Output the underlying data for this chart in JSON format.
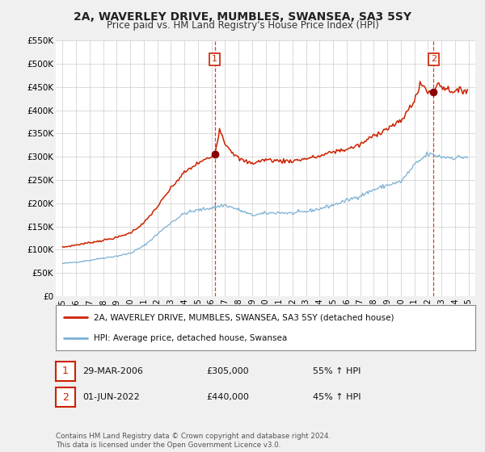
{
  "title": "2A, WAVERLEY DRIVE, MUMBLES, SWANSEA, SA3 5SY",
  "subtitle": "Price paid vs. HM Land Registry's House Price Index (HPI)",
  "legend_line1": "2A, WAVERLEY DRIVE, MUMBLES, SWANSEA, SA3 5SY (detached house)",
  "legend_line2": "HPI: Average price, detached house, Swansea",
  "footnote": "Contains HM Land Registry data © Crown copyright and database right 2024.\nThis data is licensed under the Open Government Licence v3.0.",
  "sale1_label": "1",
  "sale1_date": "29-MAR-2006",
  "sale1_price": "£305,000",
  "sale1_pct": "55% ↑ HPI",
  "sale1_x": 2006.25,
  "sale1_y": 305000,
  "sale2_label": "2",
  "sale2_date": "01-JUN-2022",
  "sale2_price": "£440,000",
  "sale2_pct": "45% ↑ HPI",
  "sale2_x": 2022.42,
  "sale2_y": 440000,
  "hpi_color": "#7ab0d4",
  "price_color": "#cc2200",
  "marker_color": "#8b0000",
  "annotation_color": "#cc2200",
  "dashed_color": "#cc2200",
  "bg_color": "#f0f0f0",
  "plot_bg": "#ffffff",
  "grid_color": "#cccccc",
  "legend_border": "#888888",
  "ylim": [
    0,
    550000
  ],
  "yticks": [
    0,
    50000,
    100000,
    150000,
    200000,
    250000,
    300000,
    350000,
    400000,
    450000,
    500000,
    550000
  ],
  "ytick_labels": [
    "£0",
    "£50K",
    "£100K",
    "£150K",
    "£200K",
    "£250K",
    "£300K",
    "£350K",
    "£400K",
    "£450K",
    "£500K",
    "£550K"
  ],
  "xlim": [
    1994.5,
    2025.5
  ],
  "xtick_years": [
    1995,
    1996,
    1997,
    1998,
    1999,
    2000,
    2001,
    2002,
    2003,
    2004,
    2005,
    2006,
    2007,
    2008,
    2009,
    2010,
    2011,
    2012,
    2013,
    2014,
    2015,
    2016,
    2017,
    2018,
    2019,
    2020,
    2021,
    2022,
    2023,
    2024,
    2025
  ],
  "hpi_anchors_x": [
    1995,
    1996,
    1997,
    1998,
    1999,
    2000,
    2001,
    2002,
    2003,
    2004,
    2005,
    2006,
    2007,
    2008,
    2009,
    2010,
    2011,
    2012,
    2013,
    2014,
    2015,
    2016,
    2017,
    2018,
    2019,
    2020,
    2021,
    2022,
    2023,
    2024,
    2025
  ],
  "hpi_anchors_y": [
    70000,
    73000,
    77000,
    82000,
    86000,
    92000,
    108000,
    133000,
    158000,
    178000,
    185000,
    190000,
    196000,
    186000,
    174000,
    178000,
    180000,
    178000,
    182000,
    188000,
    196000,
    206000,
    216000,
    229000,
    239000,
    246000,
    282000,
    306000,
    300000,
    298000,
    300000
  ],
  "price_anchors_x": [
    1995,
    1996,
    1997,
    1998,
    1999,
    2000,
    2001,
    2002,
    2003,
    2004,
    2005,
    2006.0,
    2006.25,
    2006.6,
    2007.0,
    2007.5,
    2008.0,
    2008.5,
    2009.0,
    2010.0,
    2011.0,
    2012.0,
    2013.0,
    2014.0,
    2015.0,
    2016.0,
    2017.0,
    2018.0,
    2019.0,
    2020.0,
    2021.0,
    2021.5,
    2022.0,
    2022.42,
    2022.8,
    2023.0,
    2024.0,
    2025.0
  ],
  "price_anchors_y": [
    105000,
    110000,
    115000,
    120000,
    126000,
    136000,
    157000,
    192000,
    232000,
    266000,
    286000,
    300000,
    305000,
    360000,
    330000,
    312000,
    296000,
    290000,
    286000,
    294000,
    291000,
    291000,
    296000,
    301000,
    311000,
    316000,
    326000,
    346000,
    361000,
    376000,
    422000,
    458000,
    440000,
    440000,
    462000,
    451000,
    440000,
    445000
  ]
}
